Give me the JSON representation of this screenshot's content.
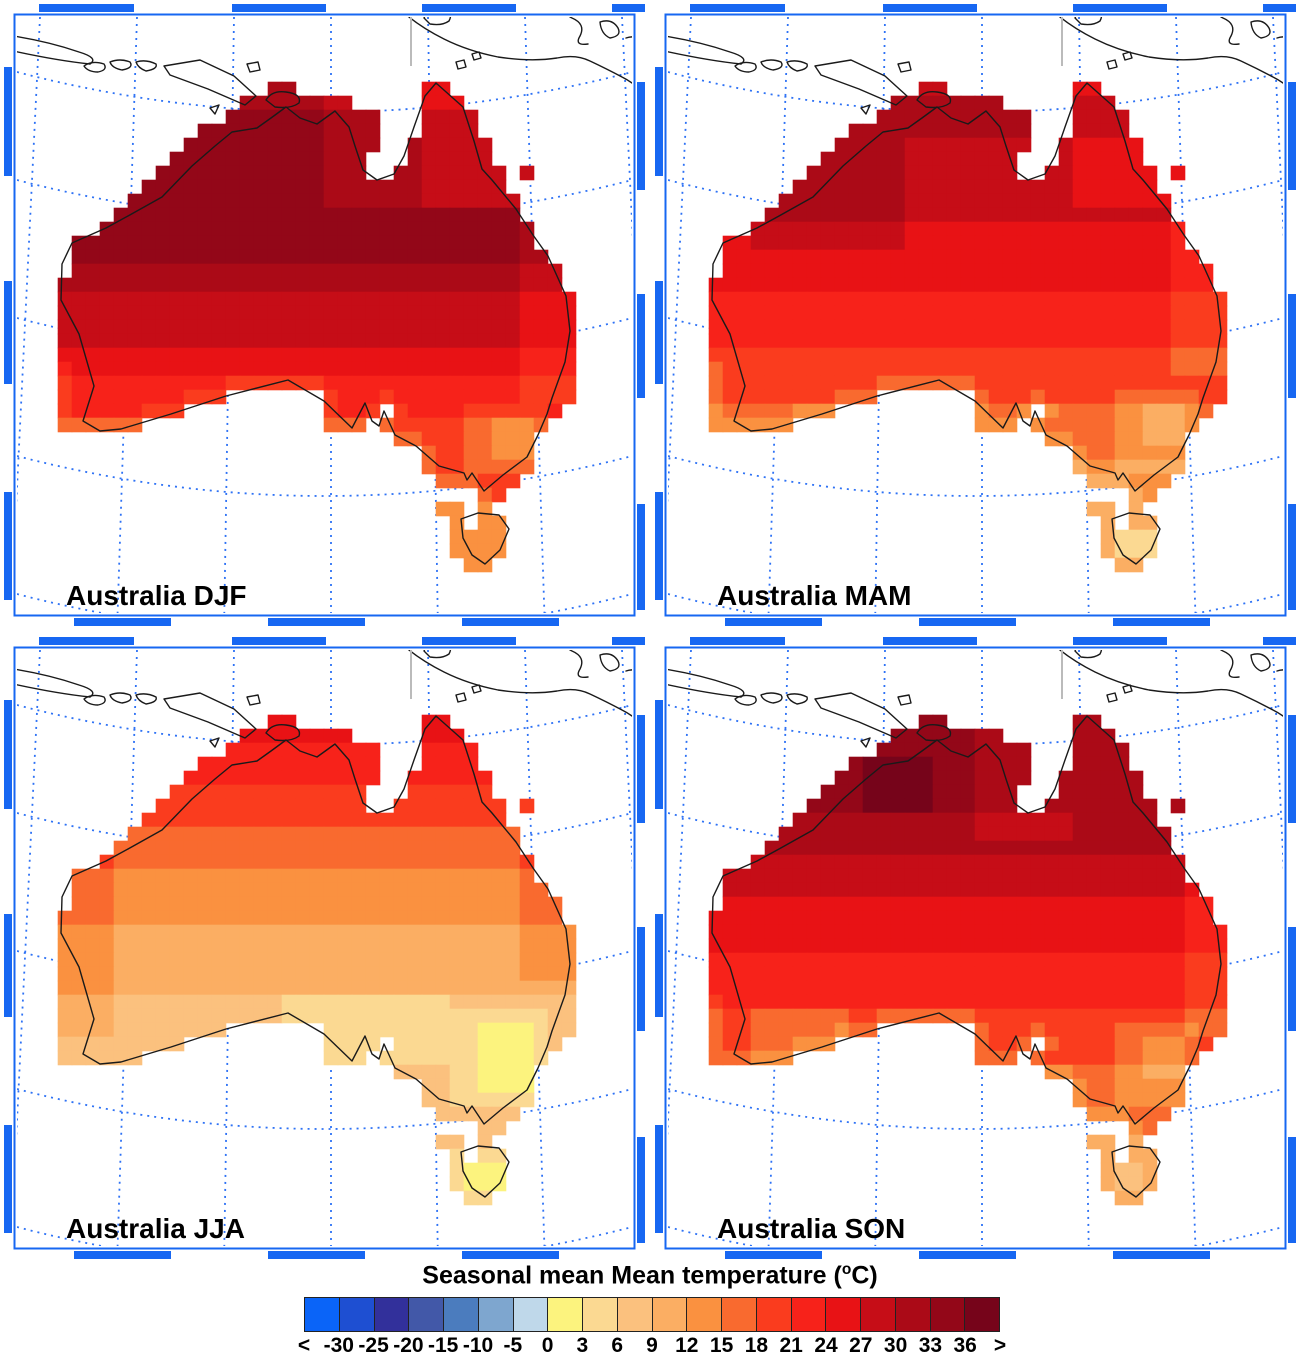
{
  "colors": {
    "frame_blue": "#1767F2",
    "grid_blue": "#2E72F5",
    "coast_black": "#1A1A1A",
    "border_gray": "#BBBBBB",
    "sea_white": "#FFFFFF",
    "cbar_border": "#222222"
  },
  "chart_data": {
    "type": "heatmap",
    "title": "Seasonal mean Mean temperature (°C)",
    "unit": "°C",
    "region": "Australia",
    "colorbar": {
      "title_prefix": "Seasonal mean Mean temperature (",
      "degree_symbol": "o",
      "title_suffix": "C)",
      "tick_labels": [
        "<",
        "-30",
        "-25",
        "-20",
        "-15",
        "-10",
        "-5",
        "0",
        "3",
        "6",
        "9",
        "12",
        "15",
        "18",
        "21",
        "24",
        "27",
        "30",
        "33",
        "36",
        ">"
      ],
      "bounds_c": [
        -30,
        -25,
        -20,
        -15,
        -10,
        -5,
        0,
        3,
        6,
        9,
        12,
        15,
        18,
        21,
        24,
        27,
        30,
        33,
        36
      ],
      "colors": [
        "#0A64F8",
        "#1E4FD2",
        "#32309B",
        "#4258A8",
        "#4B7CBE",
        "#7EA6CF",
        "#BFD8EA",
        "#FCF37E",
        "#FBD992",
        "#FBC17E",
        "#FBAE63",
        "#FA9140",
        "#F96A2F",
        "#FA3C1E",
        "#F7221A",
        "#E81215",
        "#C60D17",
        "#AB0A17",
        "#930718",
        "#76041A"
      ]
    },
    "season_summary": [
      {
        "season": "DJF",
        "north_c": "30-36",
        "interior_c": "33-36",
        "east_coast_c": "24-30",
        "south_coast_c": "18-24",
        "tasmania_c": "12-15"
      },
      {
        "season": "MAM",
        "north_c": "30-33",
        "interior_c": "24-30",
        "east_coast_c": "21-27",
        "south_coast_c": "12-15",
        "tasmania_c": "6-12"
      },
      {
        "season": "JJA",
        "north_c": "21-27",
        "interior_c": "9-18",
        "south_inland_c": "3-9",
        "alpine_se_c": "0-3",
        "tasmania_c": "3-9"
      },
      {
        "season": "SON",
        "north_c": "33-36 with patches >36",
        "interior_c": "24-33",
        "south_coast_c": "12-18",
        "tasmania_c": "6-12"
      }
    ],
    "grid": {
      "cols": 38,
      "rows": 35,
      "mask": [
        "...............##.........##..........",
        ".............########.....###.........",
        "............###########...####........",
        "..........#############...####........",
        ".........##############..######.......",
        "........##############...######.......",
        ".......###############..########.#....",
        "......##########################......",
        ".....############################.....",
        "....#############################.....",
        "...###############################....",
        ".#################################....",
        ".##################################...",
        ".###################################..",
        "####################################..",
        "#####################################.",
        "#####################################.",
        "#####################################.",
        "#####################################.",
        "#####################################.",
        "#####################################.",
        "#####################################.",
        "############.......##################.",
        "#########..........####.############..",
        "######.............###.############...",
        "........................##########....",
        "..........................########....",
        "..........................########....",
        "...........................######.....",
        "..............................##......",
        "...........................##.#.......",
        "............................#.##......",
        "............................####......",
        "............................####......",
        ".............................##......."
      ]
    },
    "seasons": [
      {
        "name": "DJF",
        "label": "Australia DJF",
        "row_class": [
          17,
          17,
          18,
          18,
          18,
          18,
          18,
          18,
          18,
          18,
          18,
          18,
          18,
          17,
          17,
          16,
          16,
          16,
          16,
          15,
          15,
          14,
          14,
          14,
          13,
          13,
          13,
          13,
          13,
          13,
          12,
          11,
          11,
          11,
          11
        ],
        "mods": [
          [
            0,
            8,
            26,
            37,
            -2
          ],
          [
            1,
            8,
            19,
            25,
            -1
          ],
          [
            9,
            22,
            33,
            37,
            -1
          ],
          [
            23,
            27,
            29,
            34,
            -1
          ],
          [
            24,
            26,
            31,
            33,
            -1
          ]
        ],
        "coast_rows": [
          20,
          30
        ],
        "coast_cols": [
          0,
          30
        ],
        "coast_delta": -1
      },
      {
        "name": "MAM",
        "label": "Australia MAM",
        "row_class": [
          16,
          17,
          17,
          17,
          16,
          16,
          16,
          16,
          16,
          16,
          15,
          15,
          15,
          15,
          15,
          14,
          14,
          14,
          14,
          13,
          13,
          13,
          13,
          12,
          12,
          12,
          12,
          11,
          11,
          11,
          11,
          10,
          10,
          10,
          10
        ],
        "mods": [
          [
            4,
            11,
            3,
            13,
            1
          ],
          [
            0,
            8,
            26,
            37,
            -1
          ],
          [
            9,
            20,
            33,
            37,
            -1
          ],
          [
            22,
            27,
            29,
            34,
            -1
          ],
          [
            23,
            25,
            31,
            33,
            -1
          ],
          [
            32,
            33,
            29,
            31,
            -2
          ]
        ],
        "coast_rows": [
          20,
          30
        ],
        "coast_cols": [
          0,
          30
        ],
        "coast_delta": -1
      },
      {
        "name": "JJA",
        "label": "Australia JJA",
        "row_class": [
          15,
          15,
          14,
          14,
          14,
          13,
          13,
          13,
          12,
          12,
          12,
          11,
          11,
          11,
          11,
          10,
          10,
          10,
          10,
          10,
          9,
          9,
          9,
          9,
          9,
          9,
          9,
          9,
          9,
          9,
          9,
          8,
          8,
          8,
          8
        ],
        "mods": [
          [
            10,
            22,
            0,
            3,
            1
          ],
          [
            8,
            18,
            33,
            37,
            1
          ],
          [
            20,
            24,
            16,
            27,
            -1
          ],
          [
            21,
            27,
            28,
            34,
            -1
          ],
          [
            22,
            26,
            30,
            33,
            -1
          ],
          [
            32,
            33,
            29,
            31,
            -1
          ]
        ],
        "coast_rows": null,
        "coast_cols": null,
        "coast_delta": 0
      },
      {
        "name": "SON",
        "label": "Australia SON",
        "row_class": [
          18,
          18,
          18,
          18,
          18,
          18,
          18,
          17,
          17,
          17,
          16,
          16,
          16,
          15,
          15,
          15,
          15,
          14,
          14,
          14,
          14,
          13,
          13,
          13,
          13,
          12,
          12,
          12,
          12,
          12,
          11,
          10,
          10,
          10,
          10
        ],
        "mods": [
          [
            3,
            6,
            11,
            15,
            1
          ],
          [
            0,
            6,
            26,
            37,
            -1
          ],
          [
            1,
            8,
            19,
            25,
            -1
          ],
          [
            12,
            22,
            34,
            37,
            -1
          ],
          [
            22,
            27,
            29,
            34,
            -1
          ],
          [
            23,
            25,
            31,
            33,
            -1
          ],
          [
            21,
            24,
            3,
            9,
            -1
          ],
          [
            32,
            33,
            29,
            30,
            -1
          ]
        ],
        "coast_rows": [
          20,
          30
        ],
        "coast_cols": [
          0,
          30
        ],
        "coast_delta": -1
      }
    ]
  }
}
